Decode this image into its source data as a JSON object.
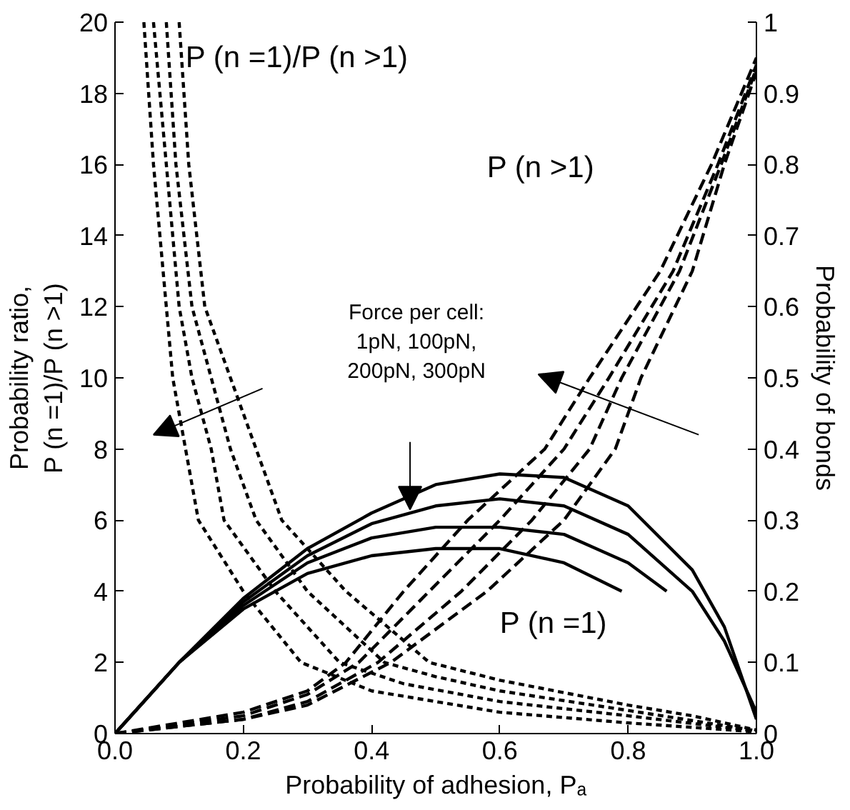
{
  "chart_data": {
    "type": "line",
    "xlabel": "Probability of adhesion, Pₐ",
    "ylabel": "Probability ratio,\nP (n =1)/P (n >1)",
    "y2label": "Probability of bonds",
    "xlim": [
      0,
      1
    ],
    "ylim": [
      0,
      20
    ],
    "y2lim": [
      0,
      1
    ],
    "xticks": [
      {
        "value": 0,
        "label": "0.0"
      },
      0.2,
      0.4,
      0.6,
      0.8,
      {
        "value": 1,
        "label": "1.0"
      }
    ],
    "yticks": [
      0,
      2,
      4,
      6,
      8,
      10,
      12,
      14,
      16,
      18,
      20
    ],
    "y2ticks": [
      0,
      0.1,
      0.2,
      0.3,
      0.4,
      0.5,
      0.6,
      0.7,
      0.8,
      0.9,
      1
    ],
    "grid": false,
    "marker": "none",
    "annotations": [
      "P (n =1)/P (n >1)",
      "P (n >1)",
      "P (n =1)",
      "Force per cell:\n1pN, 100pN,\n200pN, 300pN"
    ],
    "series": [
      {
        "color": "#000000",
        "line_style": "dotted",
        "x": [
          0.045,
          0.06,
          0.08,
          0.09,
          0.11,
          0.13,
          0.2,
          0.29,
          0.4,
          0.6,
          0.8,
          1.0
        ],
        "values": [
          20,
          16,
          12,
          10,
          8,
          6,
          4,
          2,
          1.2,
          0.6,
          0.3,
          0.05
        ]
      },
      {
        "color": "#000000",
        "line_style": "dotted",
        "x": [
          0.06,
          0.08,
          0.1,
          0.12,
          0.15,
          0.17,
          0.25,
          0.35,
          0.45,
          0.6,
          0.8,
          1.0
        ],
        "values": [
          20,
          16,
          12,
          10,
          8,
          6,
          4,
          2,
          1.4,
          0.9,
          0.5,
          0.07
        ]
      },
      {
        "color": "#000000",
        "line_style": "dotted",
        "x": [
          0.08,
          0.095,
          0.12,
          0.15,
          0.18,
          0.22,
          0.3,
          0.42,
          0.5,
          0.6,
          0.8,
          1.0
        ],
        "values": [
          20,
          16,
          12,
          10,
          8,
          6,
          4,
          2,
          1.6,
          1.2,
          0.65,
          0.08
        ]
      },
      {
        "color": "#000000",
        "line_style": "dotted",
        "x": [
          0.1,
          0.115,
          0.14,
          0.18,
          0.22,
          0.26,
          0.36,
          0.49,
          0.6,
          0.8,
          0.9,
          1.0
        ],
        "values": [
          20,
          16,
          12,
          10,
          8,
          6,
          4,
          2,
          1.5,
          0.8,
          0.5,
          0.1
        ]
      },
      {
        "color": "#000000",
        "line_style": "dashed",
        "axis": "y2",
        "x": [
          0,
          0.2,
          0.3,
          0.36,
          0.45,
          0.55,
          0.67,
          0.74,
          0.85,
          0.93,
          1.0
        ],
        "values": [
          0,
          0.03,
          0.06,
          0.1,
          0.2,
          0.3,
          0.4,
          0.5,
          0.65,
          0.8,
          0.95
        ]
      },
      {
        "color": "#000000",
        "line_style": "dashed",
        "axis": "y2",
        "x": [
          0,
          0.2,
          0.3,
          0.38,
          0.49,
          0.6,
          0.7,
          0.77,
          0.87,
          0.94,
          1.0
        ],
        "values": [
          0,
          0.025,
          0.055,
          0.1,
          0.2,
          0.3,
          0.4,
          0.5,
          0.65,
          0.8,
          0.94
        ]
      },
      {
        "color": "#000000",
        "line_style": "dashed",
        "axis": "y2",
        "x": [
          0,
          0.2,
          0.3,
          0.41,
          0.54,
          0.65,
          0.74,
          0.79,
          0.88,
          0.945,
          1.0
        ],
        "values": [
          0,
          0.02,
          0.045,
          0.1,
          0.2,
          0.3,
          0.4,
          0.5,
          0.65,
          0.8,
          0.935
        ]
      },
      {
        "color": "#000000",
        "line_style": "dashed",
        "axis": "y2",
        "x": [
          0,
          0.2,
          0.3,
          0.43,
          0.58,
          0.7,
          0.78,
          0.82,
          0.9,
          0.95,
          1.0
        ],
        "values": [
          0,
          0.02,
          0.04,
          0.1,
          0.2,
          0.3,
          0.4,
          0.5,
          0.65,
          0.8,
          0.93
        ]
      },
      {
        "color": "#000000",
        "line_style": "solid",
        "axis": "y2",
        "x": [
          0,
          0.1,
          0.2,
          0.3,
          0.4,
          0.5,
          0.6,
          0.7,
          0.8,
          0.9,
          0.95,
          1.0
        ],
        "values": [
          0,
          0.1,
          0.19,
          0.26,
          0.31,
          0.35,
          0.365,
          0.36,
          0.32,
          0.23,
          0.15,
          0.02
        ]
      },
      {
        "color": "#000000",
        "line_style": "solid",
        "axis": "y2",
        "x": [
          0,
          0.1,
          0.2,
          0.3,
          0.4,
          0.5,
          0.6,
          0.7,
          0.8,
          0.9,
          0.95,
          1.0
        ],
        "values": [
          0,
          0.1,
          0.185,
          0.25,
          0.295,
          0.32,
          0.33,
          0.32,
          0.28,
          0.2,
          0.13,
          0.03
        ]
      },
      {
        "color": "#000000",
        "line_style": "solid",
        "axis": "y2",
        "x": [
          0,
          0.1,
          0.2,
          0.3,
          0.4,
          0.5,
          0.6,
          0.7,
          0.8,
          0.86
        ],
        "values": [
          0,
          0.1,
          0.18,
          0.24,
          0.275,
          0.29,
          0.29,
          0.28,
          0.24,
          0.2
        ]
      },
      {
        "color": "#000000",
        "line_style": "solid",
        "axis": "y2",
        "x": [
          0,
          0.1,
          0.2,
          0.3,
          0.4,
          0.5,
          0.6,
          0.7,
          0.79
        ],
        "values": [
          0,
          0.1,
          0.175,
          0.225,
          0.25,
          0.26,
          0.26,
          0.24,
          0.2
        ]
      }
    ]
  }
}
